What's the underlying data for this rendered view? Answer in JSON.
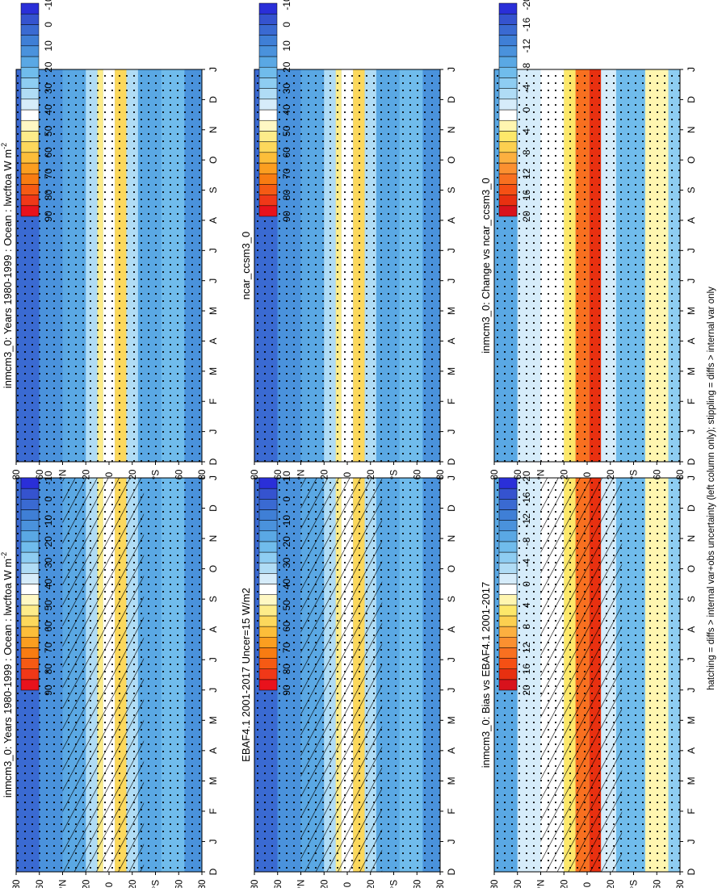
{
  "footer_note": "hatching = diffs > internal var+obs uncertainty (left column only); stippling = diffs > internal var only",
  "month_labels": [
    "D",
    "J",
    "F",
    "M",
    "A",
    "M",
    "J",
    "J",
    "A",
    "S",
    "O",
    "N",
    "D",
    "J"
  ],
  "lat_tick_labels": [
    "80",
    "60",
    "°N",
    "20",
    "0",
    "20",
    "°S",
    "60",
    "80"
  ],
  "colors": {
    "full_scale": [
      "#e8121c",
      "#f03818",
      "#f55a14",
      "#f87c12",
      "#fb9e20",
      "#fcbe3a",
      "#fcd85c",
      "#fdec8a",
      "#fff8c4",
      "#ffffff",
      "#d6ecfa",
      "#b0dcf5",
      "#8ecdf2",
      "#70bcec",
      "#5aa8e4",
      "#4a92dc",
      "#3f7fd6",
      "#3a6ad2",
      "#3553cf",
      "#2a2fd8"
    ],
    "diff_scale": [
      "#d8121c",
      "#e83010",
      "#f55014",
      "#f87020",
      "#fb9030",
      "#fcb040",
      "#fcd050",
      "#fde86a",
      "#fff6b0",
      "#ffffff",
      "#d6ecfa",
      "#b0dcf5",
      "#8ecdf2",
      "#70bcec",
      "#5aa8e4",
      "#4a92dc",
      "#3f7fd6",
      "#3a6ad2",
      "#3553cf",
      "#2a2fd8"
    ]
  },
  "panels": [
    {
      "id": "model_left",
      "title": "inmcm3_0: Years 1980-1999 : Ocean : lwcftoa W m",
      "title_sup": "-2",
      "colorbar_labels": [
        "90",
        "80",
        "70",
        "60",
        "50",
        "40",
        "30",
        "20",
        "10",
        "0",
        "-10"
      ],
      "scale": "full",
      "hatched": true
    },
    {
      "id": "obs",
      "title": "EBAF4.1 2001-2017 Uncer=15 W/m2",
      "title_sup": "",
      "colorbar_labels": [
        "90",
        "80",
        "70",
        "60",
        "50",
        "40",
        "30",
        "20",
        "10",
        "0",
        "-10"
      ],
      "scale": "full",
      "hatched": true
    },
    {
      "id": "bias",
      "title": "inmcm3_0: Bias vs EBAF4.1 2001-2017",
      "title_sup": "",
      "colorbar_labels": [
        "20",
        "16",
        "12",
        "8",
        "4",
        "0",
        "-4",
        "-8",
        "-12",
        "-16",
        "-20"
      ],
      "scale": "diff",
      "hatched": true
    },
    {
      "id": "model_right",
      "title": "inmcm3_0: Years 1980-1999 : Ocean : lwcftoa W m",
      "title_sup": "-2",
      "colorbar_labels": [
        "90",
        "80",
        "70",
        "60",
        "50",
        "40",
        "30",
        "20",
        "10",
        "0",
        "-10"
      ],
      "scale": "full",
      "hatched": false
    },
    {
      "id": "ref",
      "title": "ncar_ccsm3_0",
      "title_sup": "",
      "colorbar_labels": [
        "90",
        "80",
        "70",
        "60",
        "50",
        "40",
        "30",
        "20",
        "10",
        "0",
        "-10"
      ],
      "scale": "full",
      "hatched": false
    },
    {
      "id": "change",
      "title": "inmcm3_0: Change vs ncar_ccsm3_0",
      "title_sup": "",
      "colorbar_labels": [
        "20",
        "16",
        "12",
        "8",
        "4",
        "0",
        "-4",
        "-8",
        "-12",
        "-16",
        "-20"
      ],
      "scale": "diff",
      "hatched": false
    }
  ],
  "chart_data": {
    "type": "heatmap",
    "x_label": "month (seasonal cycle, D to J)",
    "y_label": "latitude",
    "x": [
      "D",
      "J",
      "F",
      "M",
      "A",
      "M",
      "J",
      "J",
      "A",
      "S",
      "O",
      "N",
      "D",
      "J"
    ],
    "lat": [
      -80,
      -60,
      -40,
      -20,
      -10,
      0,
      10,
      20,
      40,
      60,
      80
    ]
  }
}
